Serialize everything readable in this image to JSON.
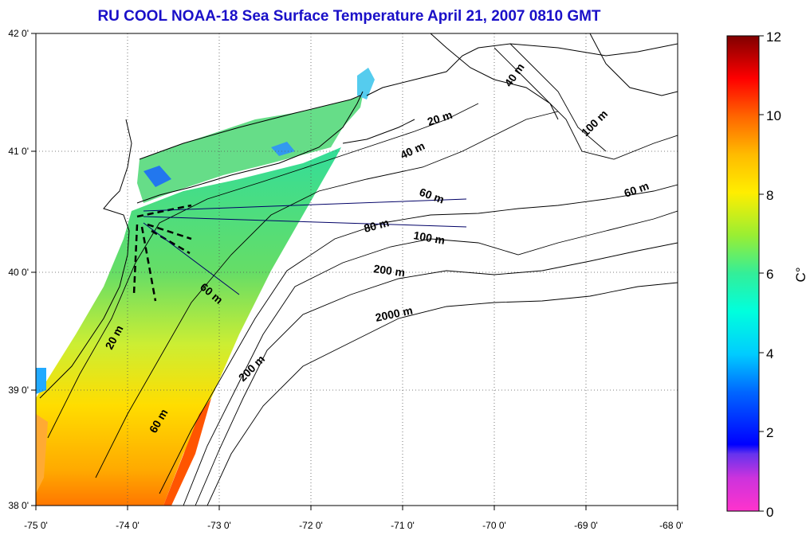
{
  "title": "RU COOL  NOAA-18 Sea Surface Temperature April 21, 2007 0810 GMT",
  "map": {
    "lon_ticks": [
      "-75 0'",
      "-74 0'",
      "-73 0'",
      "-72 0'",
      "-71 0'",
      "-70 0'",
      "-69 0'",
      "-68 0'"
    ],
    "lat_ticks": [
      "42 0'",
      "41 0'",
      "40 0'",
      "39 0'",
      "38 0'"
    ],
    "lon_range": [
      -75,
      -68
    ],
    "lat_range": [
      38,
      42
    ],
    "grid": "dotted"
  },
  "contours": [
    {
      "label": "20 m"
    },
    {
      "label": "40 m"
    },
    {
      "label": "40 m"
    },
    {
      "label": "60 m"
    },
    {
      "label": "80 m"
    },
    {
      "label": "100 m"
    },
    {
      "label": "100 m"
    },
    {
      "label": "60 m"
    },
    {
      "label": "200 m"
    },
    {
      "label": "2000 m"
    },
    {
      "label": "60 m"
    },
    {
      "label": "20 m"
    },
    {
      "label": "200 m"
    },
    {
      "label": "60 m"
    }
  ],
  "colorbar": {
    "ticks": [
      "12",
      "10",
      "8",
      "6",
      "4",
      "2",
      "0"
    ],
    "unit": "C°",
    "range": [
      0,
      12
    ],
    "colors": [
      "#ff33cc",
      "#9933cc",
      "#0000ff",
      "#00aaff",
      "#00ffff",
      "#33ee99",
      "#66dd66",
      "#ccee33",
      "#ffee00",
      "#ffaa00",
      "#ff6600",
      "#ff0000",
      "#880000"
    ]
  }
}
